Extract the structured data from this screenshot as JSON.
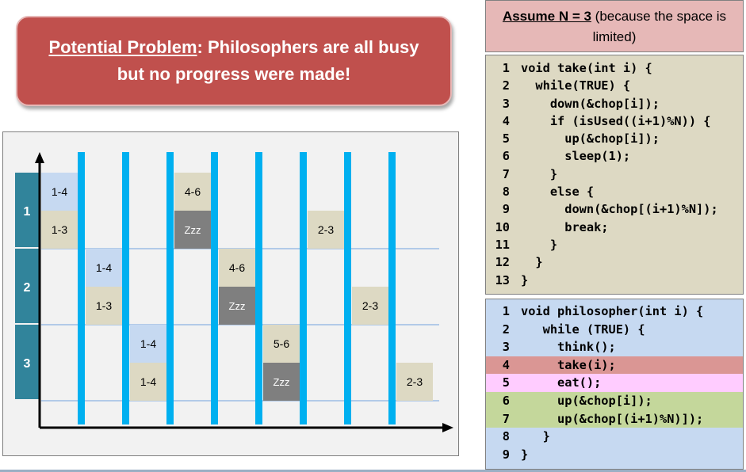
{
  "banner": {
    "label": "Potential Problem",
    "text": ": Philosophers are all busy but no progress were made!"
  },
  "assume": {
    "label": "Assume N = 3",
    "text": " (because the space is limited)"
  },
  "take_code": [
    {
      "n": "1",
      "code": "void take(int i) {"
    },
    {
      "n": "2",
      "code": "  while(TRUE) {"
    },
    {
      "n": "3",
      "code": "    down(&chop[i]);"
    },
    {
      "n": "4",
      "code": "    if (isUsed((i+1)%N)) {"
    },
    {
      "n": "5",
      "code": "      up(&chop[i]);"
    },
    {
      "n": "6",
      "code": "      sleep(1);"
    },
    {
      "n": "7",
      "code": "    }"
    },
    {
      "n": "8",
      "code": "    else {"
    },
    {
      "n": "9",
      "code": "      down(&chop[(i+1)%N]);"
    },
    {
      "n": "10",
      "code": "      break;"
    },
    {
      "n": "11",
      "code": "    }"
    },
    {
      "n": "12",
      "code": "  }"
    },
    {
      "n": "13",
      "code": "}"
    }
  ],
  "philosopher_code": [
    {
      "n": "1",
      "code": "void philosopher(int i) {",
      "hl": ""
    },
    {
      "n": "2",
      "code": "   while (TRUE) {",
      "hl": ""
    },
    {
      "n": "3",
      "code": "     think();",
      "hl": ""
    },
    {
      "n": "4",
      "code": "     take(i);",
      "hl": "take"
    },
    {
      "n": "5",
      "code": "     eat();",
      "hl": "eat"
    },
    {
      "n": "6",
      "code": "     up(&chop[i]);",
      "hl": "up"
    },
    {
      "n": "7",
      "code": "     up(&chop[(i+1)%N)]);",
      "hl": "up"
    },
    {
      "n": "8",
      "code": "   }",
      "hl": ""
    },
    {
      "n": "9",
      "code": "}",
      "hl": ""
    }
  ],
  "diagram": {
    "rows": [
      "1",
      "2",
      "3"
    ],
    "cells": [
      {
        "row": 0,
        "slot": 0,
        "col": 0,
        "text": "1-4",
        "kind": "blue"
      },
      {
        "row": 0,
        "slot": 1,
        "col": 0,
        "text": "1-3",
        "kind": "tan"
      },
      {
        "row": 1,
        "slot": 0,
        "col": 1,
        "text": "1-4",
        "kind": "blue"
      },
      {
        "row": 1,
        "slot": 1,
        "col": 1,
        "text": "1-3",
        "kind": "tan"
      },
      {
        "row": 2,
        "slot": 0,
        "col": 2,
        "text": "1-4",
        "kind": "blue"
      },
      {
        "row": 2,
        "slot": 1,
        "col": 2,
        "text": "1-4",
        "kind": "tan"
      },
      {
        "row": 0,
        "slot": 0,
        "col": 3,
        "text": "4-6",
        "kind": "tan"
      },
      {
        "row": 0,
        "slot": 1,
        "col": 3,
        "text": "Zzz",
        "kind": "zzz"
      },
      {
        "row": 1,
        "slot": 0,
        "col": 4,
        "text": "4-6",
        "kind": "tan"
      },
      {
        "row": 1,
        "slot": 1,
        "col": 4,
        "text": "Zzz",
        "kind": "zzz"
      },
      {
        "row": 2,
        "slot": 0,
        "col": 5,
        "text": "5-6",
        "kind": "tan"
      },
      {
        "row": 2,
        "slot": 1,
        "col": 5,
        "text": "Zzz",
        "kind": "zzz"
      },
      {
        "row": 0,
        "slot": 1,
        "col": 6,
        "text": "2-3",
        "kind": "tan"
      },
      {
        "row": 1,
        "slot": 1,
        "col": 7,
        "text": "2-3",
        "kind": "tan"
      },
      {
        "row": 2,
        "slot": 1,
        "col": 8,
        "text": "2-3",
        "kind": "tan"
      }
    ],
    "colors": {
      "row_label": "#31849b",
      "blue_cell": "#c6d9f1",
      "tan_cell": "#ddd9c3",
      "zzz_cell": "#7f7f7f",
      "separator": "#00b0f0",
      "gridline": "#8db3e2"
    }
  }
}
